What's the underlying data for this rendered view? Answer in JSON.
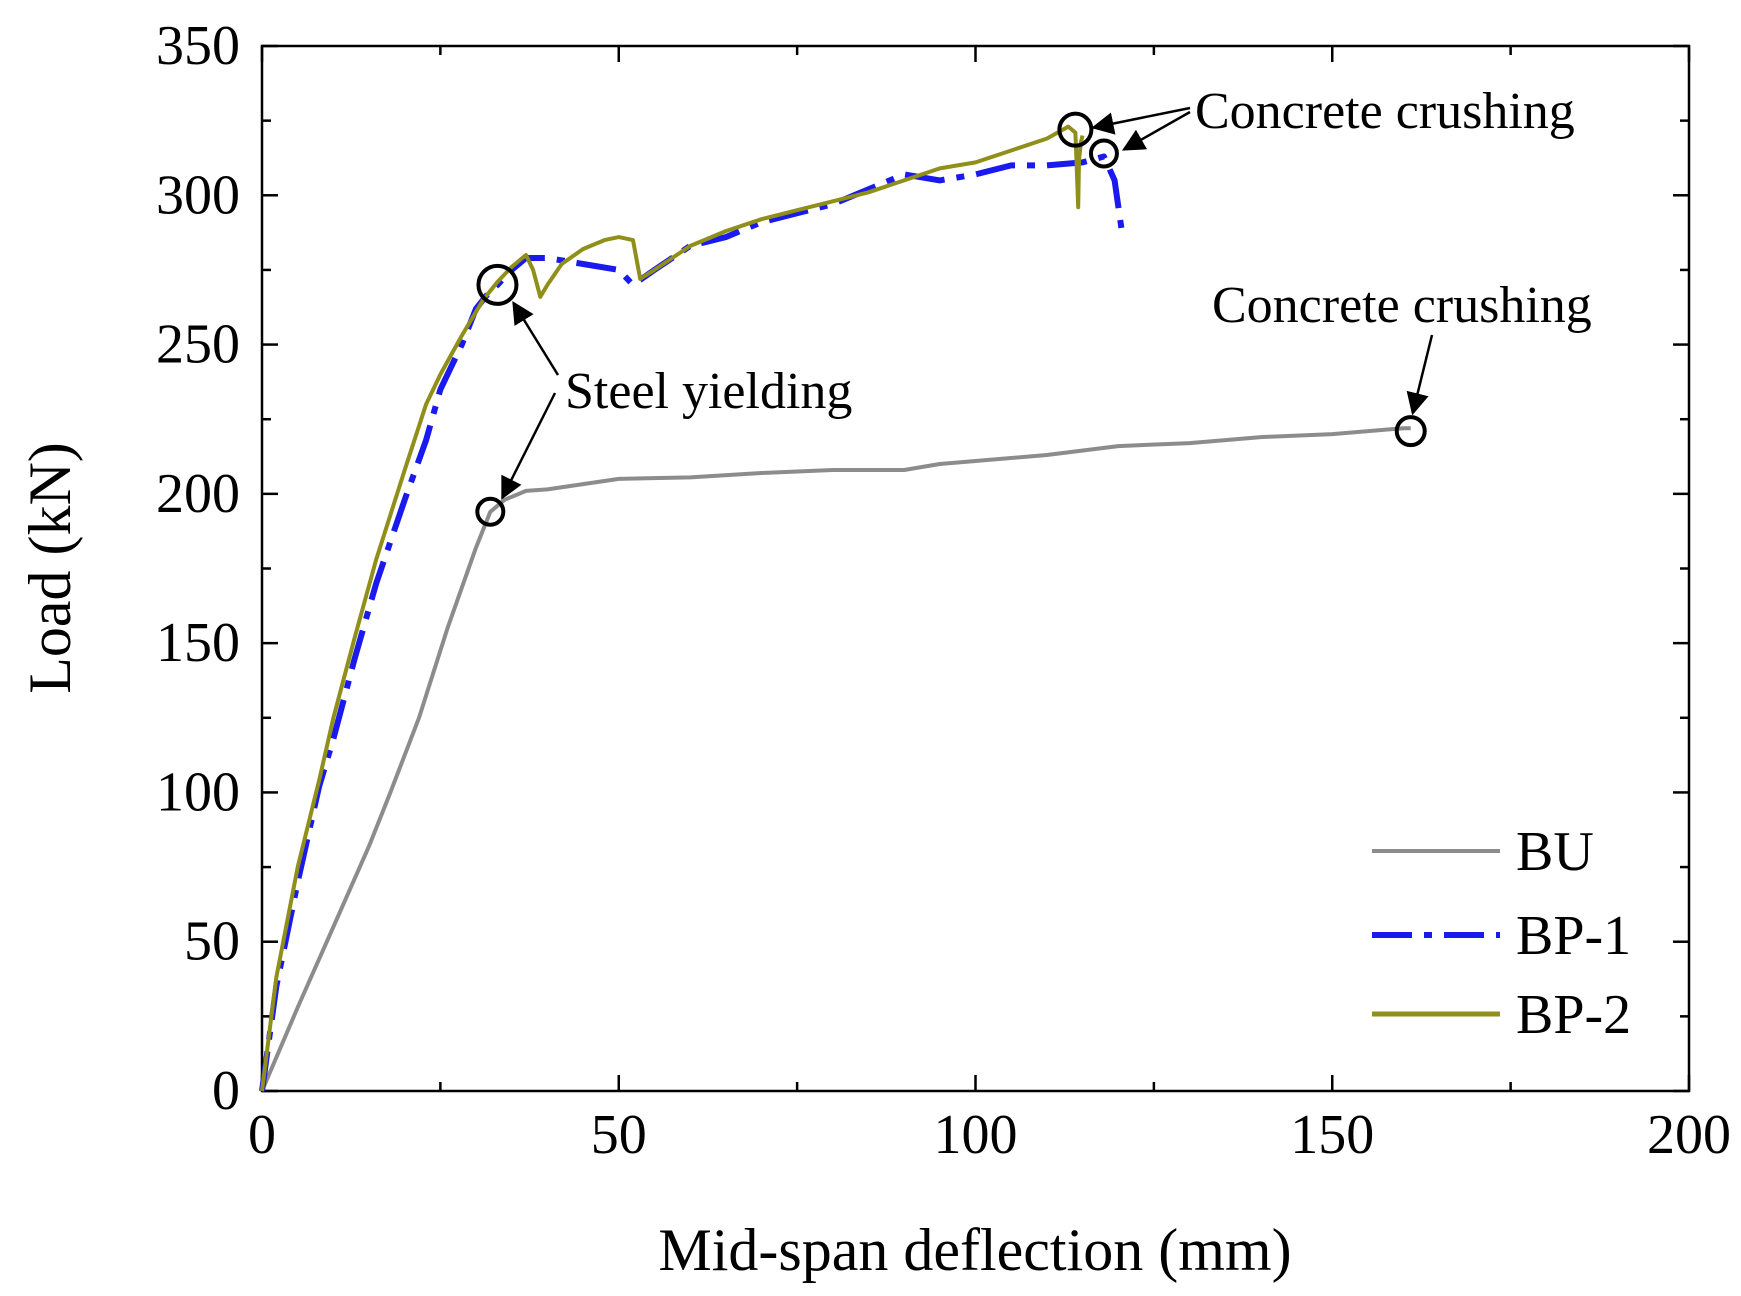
{
  "chart_data": {
    "type": "line",
    "title": "",
    "xlabel": "Mid-span deflection (mm)",
    "ylabel": "Load (kN)",
    "xlim": [
      0,
      200
    ],
    "ylim": [
      0,
      350
    ],
    "xticks": [
      0,
      50,
      100,
      150,
      200
    ],
    "yticks": [
      0,
      50,
      100,
      150,
      200,
      250,
      300,
      350
    ],
    "grid": false,
    "legend_position": "bottom-right",
    "series": [
      {
        "name": "BU",
        "color": "#8c8c8c",
        "style": "solid",
        "x": [
          0,
          5,
          10,
          15,
          18,
          22,
          26,
          30,
          32,
          34,
          37,
          40,
          50,
          60,
          70,
          80,
          90,
          95,
          100,
          110,
          120,
          130,
          140,
          150,
          160,
          161
        ],
        "y": [
          0,
          28,
          55,
          82,
          100,
          125,
          155,
          182,
          194,
          198,
          201,
          201.5,
          205,
          205.5,
          207,
          208,
          208,
          210,
          211,
          213,
          216,
          217,
          219,
          220,
          222,
          222
        ]
      },
      {
        "name": "BP-1",
        "color": "#1a1aee",
        "style": "dash-dot",
        "x": [
          0,
          2,
          5,
          8,
          10,
          13,
          16,
          20,
          23,
          25,
          28,
          30,
          32,
          33,
          35,
          37,
          40,
          45,
          50,
          52,
          55,
          60,
          65,
          70,
          75,
          80,
          85,
          90,
          95,
          100,
          105,
          110,
          115,
          118,
          119.5,
          120.5
        ],
        "y": [
          0,
          35,
          70,
          102,
          118,
          145,
          170,
          198,
          218,
          235,
          250,
          262,
          268,
          270,
          275,
          279,
          279,
          277,
          275,
          270,
          275,
          283,
          286,
          291,
          294,
          297,
          302,
          307,
          305,
          307,
          310,
          310,
          311,
          313,
          305,
          288
        ]
      },
      {
        "name": "BP-2",
        "color": "#8f8f1a",
        "style": "solid",
        "x": [
          0,
          2,
          5,
          8,
          10,
          13,
          16,
          20,
          23,
          25,
          28,
          31,
          33,
          35,
          37,
          38,
          39,
          40,
          42,
          45,
          48,
          50,
          52,
          53,
          55,
          60,
          65,
          70,
          75,
          80,
          85,
          90,
          95,
          100,
          105,
          110,
          113,
          114,
          114.4,
          114.5,
          114.8,
          115
        ],
        "y": [
          0,
          38,
          75,
          104,
          125,
          152,
          178,
          208,
          230,
          240,
          253,
          265,
          271,
          276,
          280,
          275,
          266,
          270,
          277,
          282,
          285,
          286,
          285,
          272,
          275,
          283,
          288,
          292,
          295,
          298,
          301,
          305,
          309,
          311,
          315,
          319,
          323,
          321,
          296,
          312,
          318,
          320
        ]
      }
    ],
    "annotations": [
      {
        "text": "Concrete crushing",
        "target": "BP-1 / BP-2 ends",
        "points": [
          [
            114,
            322
          ],
          [
            118,
            314
          ]
        ]
      },
      {
        "text": "Steel yielding",
        "target": "yield points",
        "points": [
          [
            33,
            270
          ],
          [
            32,
            194
          ]
        ]
      },
      {
        "text": "Concrete crushing",
        "target": "BU end",
        "points": [
          [
            161,
            221
          ]
        ]
      }
    ]
  }
}
